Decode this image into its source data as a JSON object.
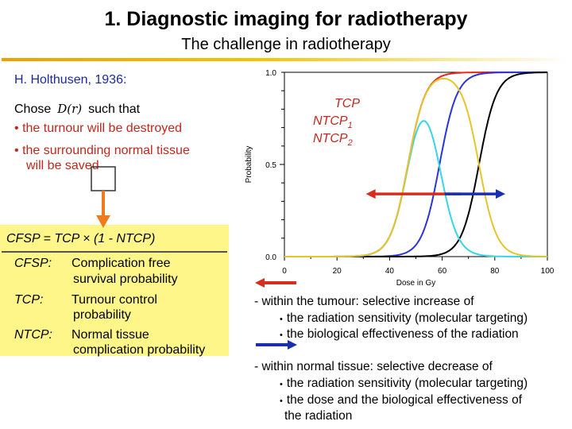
{
  "title": "1. Diagnostic imaging for radiotherapy",
  "subtitle": "The challenge in radiotherapy",
  "left": {
    "attribution": "H. Holthusen, 1936:",
    "chose_prefix": "Chose",
    "chose_symbol": "D(r)",
    "chose_suffix": "such that",
    "bullet_marker": "•",
    "bullet1": "the turnour will be destroyed",
    "bullet2_line1": "the surrounding normal tissue",
    "bullet2_line2": "will be saved",
    "formula": "CFSP = TCP × (1 - NTCP)",
    "definitions": [
      {
        "term": "CFSP:",
        "line1": "Complication free",
        "line2": "survival probability"
      },
      {
        "term": "TCP:",
        "line1": "Turnour control",
        "line2": "probability"
      },
      {
        "term": "NTCP:",
        "line1": "Normal tissue",
        "line2": "complication probability"
      }
    ]
  },
  "chart_data": {
    "type": "line",
    "xlabel": "Dose in Gy",
    "ylabel": "Probability",
    "xlim": [
      0,
      100
    ],
    "ylim": [
      0,
      1
    ],
    "x_ticks": [
      0,
      20,
      40,
      60,
      80,
      100
    ],
    "y_ticks": [
      0.0,
      0.5,
      1.0
    ],
    "y_tick_labels": [
      "0.0",
      "0.5",
      "1.0"
    ],
    "legend": {
      "tcp": "TCP",
      "ntcp_base": "NTCP",
      "ntcp1_sub": "1",
      "ntcp2_sub": "2",
      "placement": "upper-left inside"
    },
    "series": [
      {
        "name": "TCP",
        "kind": "sigmoid",
        "d50": 47,
        "k": 0.3,
        "color": "#e8261c"
      },
      {
        "name": "NTCP1",
        "kind": "sigmoid",
        "d50": 59,
        "k": 0.3,
        "color": "#2b34d6"
      },
      {
        "name": "NTCP2",
        "kind": "sigmoid",
        "d50": 74,
        "k": 0.3,
        "color": "#000000"
      },
      {
        "name": "CFSP1",
        "kind": "cfsp",
        "of": [
          "TCP",
          "NTCP1"
        ],
        "color": "#36d6e6"
      },
      {
        "name": "CFSP2",
        "kind": "cfsp",
        "of": [
          "TCP",
          "NTCP2"
        ],
        "color": "#e6c42a"
      }
    ],
    "arrows": [
      {
        "color": "#d62d1e",
        "from_dose": 67,
        "to_dose": 31,
        "probability": 0.34
      },
      {
        "color": "#1a2fb0",
        "from_dose": 61,
        "to_dose": 84,
        "probability": 0.34
      }
    ]
  },
  "notes": {
    "tumour_head": "- within the tumour: selective increase of",
    "tumour_a": "the radiation sensitivity (molecular targeting)",
    "tumour_b": "the biological effectiveness of the radiation",
    "normal_head": "- within normal tissue: selective decrease of",
    "normal_a": "the radiation sensitivity (molecular targeting)",
    "normal_b": "the dose and the biological effectiveness of",
    "normal_c": "the radiation",
    "dot": "•"
  },
  "colors": {
    "heading_blue": "#1a2a9a",
    "text_red": "#c0281d",
    "arrow_orange": "#f07b1c",
    "box_yellow": "#fff68a"
  }
}
